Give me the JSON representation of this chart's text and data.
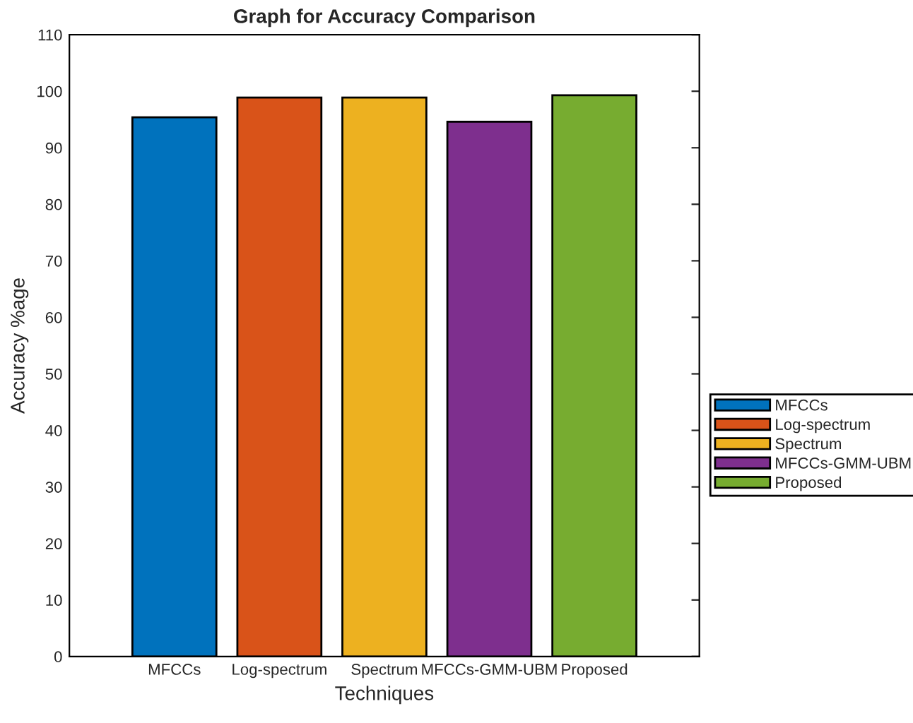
{
  "chart_data": {
    "type": "bar",
    "title": "Graph for Accuracy Comparison",
    "xlabel": "Techniques",
    "ylabel": "Accuracy %age",
    "categories": [
      "MFCCs",
      "Log-spectrum",
      "Spectrum",
      "MFCCs-GMM-UBM",
      "Proposed"
    ],
    "series": [
      {
        "name": "MFCCs",
        "color": "#0072bd",
        "values": [
          95.4,
          null,
          null,
          null,
          null
        ]
      },
      {
        "name": "Log-spectrum",
        "color": "#d95319",
        "values": [
          null,
          98.9,
          null,
          null,
          null
        ]
      },
      {
        "name": "Spectrum",
        "color": "#edb120",
        "values": [
          null,
          null,
          98.9,
          null,
          null
        ]
      },
      {
        "name": "MFCCs-GMM-UBM",
        "color": "#7e2f8e",
        "values": [
          null,
          null,
          null,
          94.6,
          null
        ]
      },
      {
        "name": "Proposed",
        "color": "#77ac30",
        "values": [
          null,
          null,
          null,
          null,
          99.3
        ]
      }
    ],
    "ylim": [
      0,
      110
    ],
    "yticks": [
      0,
      10,
      20,
      30,
      40,
      50,
      60,
      70,
      80,
      90,
      100,
      110
    ],
    "grid": false,
    "legend": "right"
  }
}
